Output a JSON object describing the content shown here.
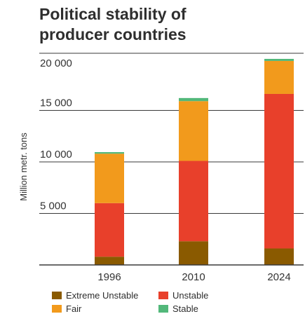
{
  "colors": {
    "extreme_unstable": "#8a5a00",
    "unstable": "#e8402b",
    "fair": "#f29a1c",
    "stable": "#52b87a",
    "axis": "#3a3a3a"
  },
  "chart_data": {
    "type": "bar",
    "stacked": true,
    "title_lines": [
      "Political stability of",
      "producer countries"
    ],
    "ylabel": "Million metr. tons",
    "xlabel": "",
    "categories": [
      "1996",
      "2010",
      "2024"
    ],
    "yticks": [
      5000,
      10000,
      15000,
      20000
    ],
    "ytick_labels": [
      "5 000",
      "10 000",
      "15 000",
      "20 000"
    ],
    "ylim": [
      0,
      20000
    ],
    "grid": "horizontal",
    "legend_position": "bottom",
    "series": [
      {
        "name": "Extreme Unstable",
        "color_key": "extreme_unstable",
        "values": [
          800,
          2300,
          1600
        ]
      },
      {
        "name": "Unstable",
        "color_key": "unstable",
        "values": [
          5200,
          7800,
          15000
        ]
      },
      {
        "name": "Fair",
        "color_key": "fair",
        "values": [
          4800,
          5800,
          3200
        ]
      },
      {
        "name": "Stable",
        "color_key": "stable",
        "values": [
          150,
          300,
          200
        ]
      }
    ]
  }
}
